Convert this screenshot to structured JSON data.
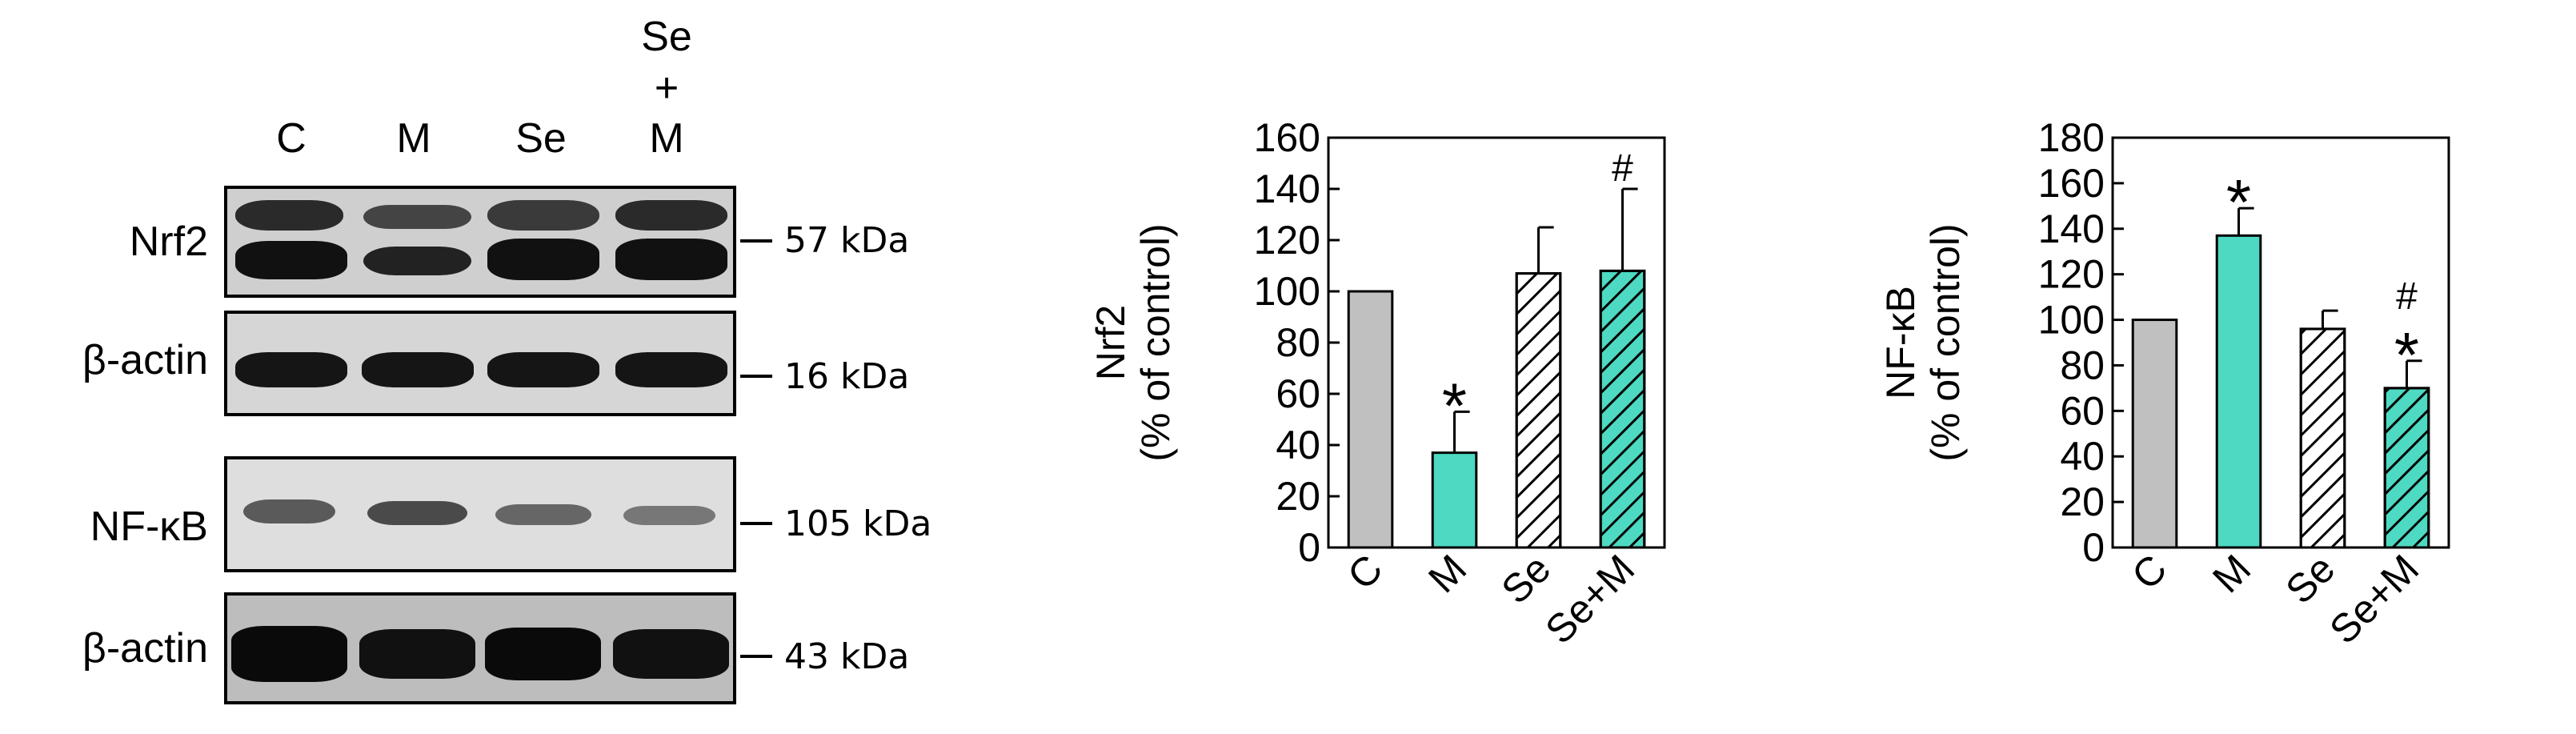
{
  "western_blot": {
    "lanes": [
      "C",
      "M",
      "Se",
      "Se\n+\nM"
    ],
    "lane_lines": [
      [
        "C"
      ],
      [
        "M"
      ],
      [
        "Se"
      ],
      [
        "Se",
        "+",
        "M"
      ]
    ],
    "panels": [
      {
        "label": "Nrf2",
        "marker": "57 kDa"
      },
      {
        "label": "β-actin",
        "marker": "16 kDa"
      },
      {
        "label": "NF-κB",
        "marker": "105 kDa"
      },
      {
        "label": "β-actin",
        "marker": "43 kDa"
      }
    ],
    "background_color": "#d9d9d9",
    "band_color": "#1a1a1a"
  },
  "chart_data": [
    {
      "type": "bar",
      "categories": [
        "C",
        "M",
        "Se",
        "Se+M"
      ],
      "values": [
        100,
        37,
        107,
        108
      ],
      "errors": [
        0,
        16,
        18,
        32
      ],
      "annotations": [
        "",
        "*",
        "",
        "#"
      ],
      "ylabel_line1": "Nrf2",
      "ylabel_line2": "(% of control)",
      "ylim": [
        0,
        160
      ],
      "yticks": [
        0,
        20,
        40,
        60,
        80,
        100,
        120,
        140,
        160
      ],
      "fills": [
        "solid-gray",
        "solid-teal",
        "hatch-white",
        "hatch-teal"
      ],
      "colors": {
        "gray": "#c0c0c0",
        "teal": "#4dd9c2"
      }
    },
    {
      "type": "bar",
      "categories": [
        "C",
        "M",
        "Se",
        "Se+M"
      ],
      "values": [
        100,
        137,
        96,
        70
      ],
      "errors": [
        0,
        12,
        8,
        12
      ],
      "annotations": [
        "",
        "*",
        "",
        "#\n*"
      ],
      "annotation_lines": [
        [],
        [
          "*"
        ],
        [],
        [
          "#",
          "*"
        ]
      ],
      "ylabel_line1": "NF-κB",
      "ylabel_line2": "(% of control)",
      "ylim": [
        0,
        180
      ],
      "yticks": [
        0,
        20,
        40,
        60,
        80,
        100,
        120,
        140,
        160,
        180
      ],
      "fills": [
        "solid-gray",
        "solid-teal",
        "hatch-white",
        "hatch-teal"
      ],
      "colors": {
        "gray": "#c0c0c0",
        "teal": "#4dd9c2"
      }
    }
  ]
}
